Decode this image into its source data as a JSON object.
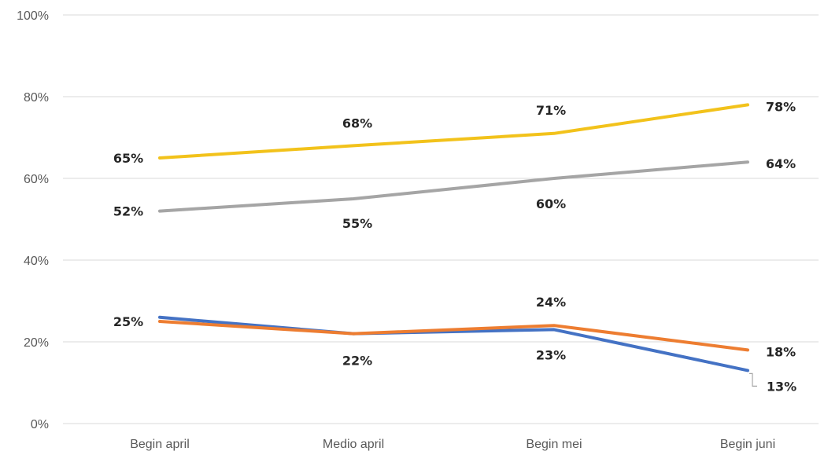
{
  "chart_data": {
    "type": "line",
    "title": "",
    "xlabel": "",
    "ylabel": "",
    "categories": [
      "Begin april",
      "Medio april",
      "Begin mei",
      "Begin juni"
    ],
    "ylim": [
      0,
      100
    ],
    "yticks": [
      "0%",
      "20%",
      "40%",
      "60%",
      "80%",
      "100%"
    ],
    "grid": true,
    "legend": "none",
    "series": [
      {
        "color": "#f2c21b",
        "values": [
          65,
          68,
          71,
          78
        ],
        "labels": [
          "65%",
          "68%",
          "71%",
          "78%"
        ]
      },
      {
        "color": "#a5a5a5",
        "values": [
          52,
          55,
          60,
          64
        ],
        "labels": [
          "52%",
          "55%",
          "60%",
          "64%"
        ]
      },
      {
        "color": "#4472c4",
        "values": [
          26,
          22,
          23,
          13
        ],
        "labels": [
          "",
          "",
          "23%",
          "13%"
        ]
      },
      {
        "color": "#ed7d31",
        "values": [
          25,
          22,
          24,
          18
        ],
        "labels": [
          "25%",
          "22%",
          "24%",
          "18%"
        ]
      }
    ]
  }
}
